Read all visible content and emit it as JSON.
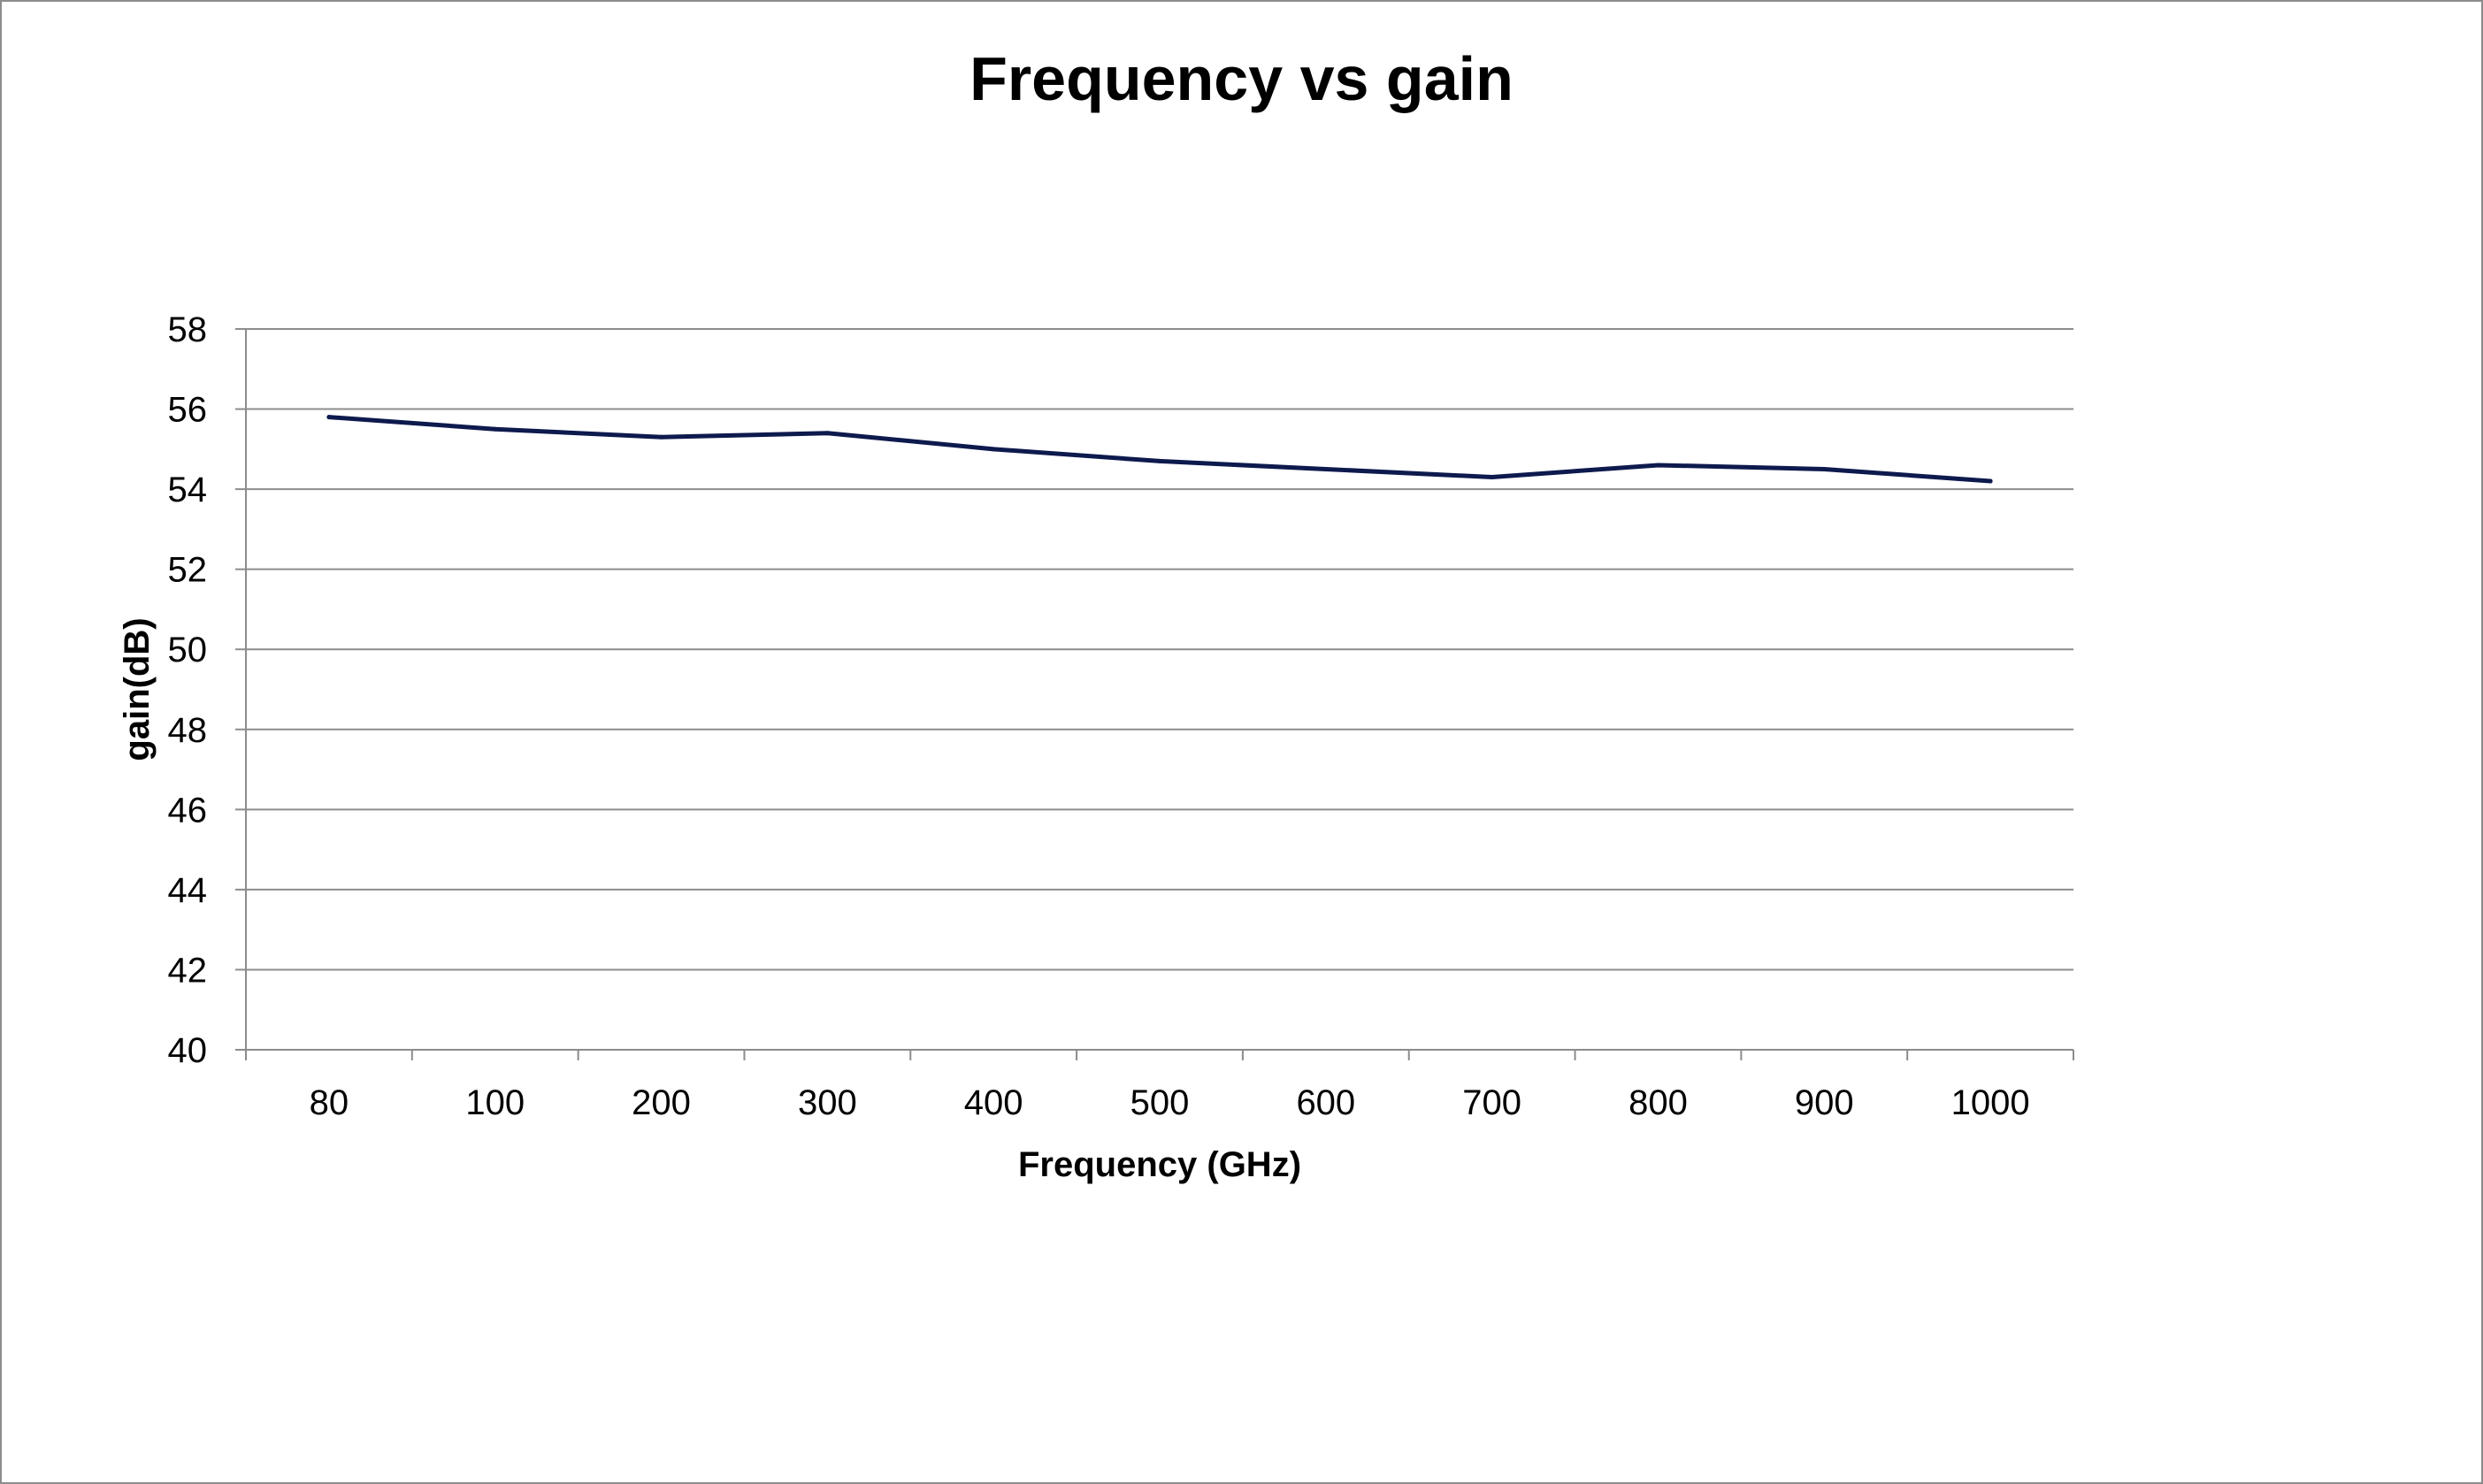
{
  "chart_data": {
    "type": "line",
    "title": "Frequency vs gain",
    "xlabel": "Frequency (GHz)",
    "ylabel": "gain(dB)",
    "categories": [
      "80",
      "100",
      "200",
      "300",
      "400",
      "500",
      "600",
      "700",
      "800",
      "900",
      "1000"
    ],
    "series": [
      {
        "values": [
          55.8,
          55.5,
          55.3,
          55.4,
          55.0,
          54.7,
          54.5,
          54.3,
          54.6,
          54.5,
          54.2
        ],
        "color": "#0d1a4d"
      }
    ],
    "ylim": [
      40,
      58
    ],
    "yticks": [
      40,
      42,
      44,
      46,
      48,
      50,
      52,
      54,
      56,
      58
    ],
    "grid": true,
    "legend": "none"
  }
}
